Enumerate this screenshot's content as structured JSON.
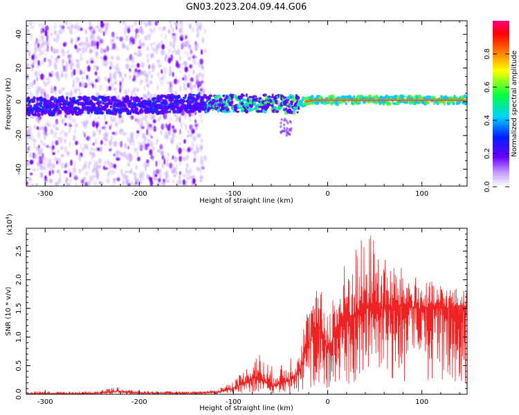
{
  "figure": {
    "title": "GN03.2023.204.09.44.G06"
  },
  "chart_data": [
    {
      "type": "heatmap",
      "title": "GN03.2023.204.09.44.G06",
      "xlabel": "Height of straight line (km)",
      "ylabel": "Frequency (Hz)",
      "xlim": [
        -320,
        148
      ],
      "ylim": [
        -50,
        48
      ],
      "x_ticks": [
        -300,
        -200,
        -100,
        0,
        100
      ],
      "x_tick_labels": [
        "-300",
        "-200",
        "-100",
        "0",
        "100"
      ],
      "y_ticks": [
        -40,
        -20,
        0,
        20,
        40
      ],
      "y_tick_labels": [
        "-40",
        "-20",
        "0",
        "20",
        "40"
      ],
      "colorbar": {
        "label": "Normalized spectral amplitude",
        "range": [
          0,
          1
        ],
        "ticks": [
          0.0,
          0.2,
          0.4,
          0.6,
          0.8
        ],
        "tick_labels": [
          "0.0",
          "0.2",
          "0.4",
          "0.6",
          "0.8"
        ]
      },
      "signal_track": {
        "x": [
          -320,
          -250,
          -200,
          -150,
          -100,
          -70,
          -50,
          -35,
          -25,
          -15,
          0,
          50,
          100,
          148
        ],
        "frequency": [
          -3,
          -2,
          -2,
          -1,
          -1,
          -1,
          -1,
          -2,
          0,
          1,
          1,
          1,
          1,
          1
        ]
      },
      "noise_extent_x": [
        -320,
        -130
      ]
    },
    {
      "type": "line",
      "xlabel": "Height of straight line (km)",
      "ylabel": "SNR (10 * v/v)",
      "y_scale_label": "(x10",
      "y_scale_exponent": "4",
      "y_scale_suffix": ")",
      "xlim": [
        -320,
        148
      ],
      "ylim": [
        0,
        2.9
      ],
      "x_ticks": [
        -300,
        -200,
        -100,
        0,
        100
      ],
      "x_tick_labels": [
        "-300",
        "-200",
        "-100",
        "0",
        "100"
      ],
      "y_ticks": [
        0.0,
        0.5,
        1.0,
        1.5,
        2.0,
        2.5
      ],
      "y_tick_labels": [
        "0.0",
        "0.5",
        "1.0",
        "1.5",
        "2.0",
        "2.5"
      ],
      "color": "#ee2222",
      "envelope": {
        "x": [
          -320,
          -250,
          -225,
          -200,
          -150,
          -120,
          -100,
          -85,
          -75,
          -60,
          -50,
          -40,
          -30,
          -20,
          -10,
          0,
          10,
          20,
          30,
          40,
          48,
          60,
          80,
          100,
          120,
          148
        ],
        "mean": [
          0.01,
          0.01,
          0.05,
          0.02,
          0.02,
          0.03,
          0.1,
          0.25,
          0.3,
          0.15,
          0.2,
          0.25,
          0.4,
          0.9,
          1.2,
          0.8,
          1.1,
          1.3,
          1.4,
          1.5,
          1.6,
          1.5,
          1.55,
          1.5,
          1.5,
          1.55
        ],
        "peak": [
          0.05,
          0.05,
          0.13,
          0.06,
          0.05,
          0.07,
          0.25,
          0.5,
          0.78,
          0.5,
          0.5,
          0.7,
          1.0,
          1.6,
          1.9,
          1.6,
          2.0,
          2.4,
          2.7,
          2.75,
          2.9,
          2.4,
          2.2,
          2.0,
          1.95,
          1.8
        ]
      }
    }
  ]
}
